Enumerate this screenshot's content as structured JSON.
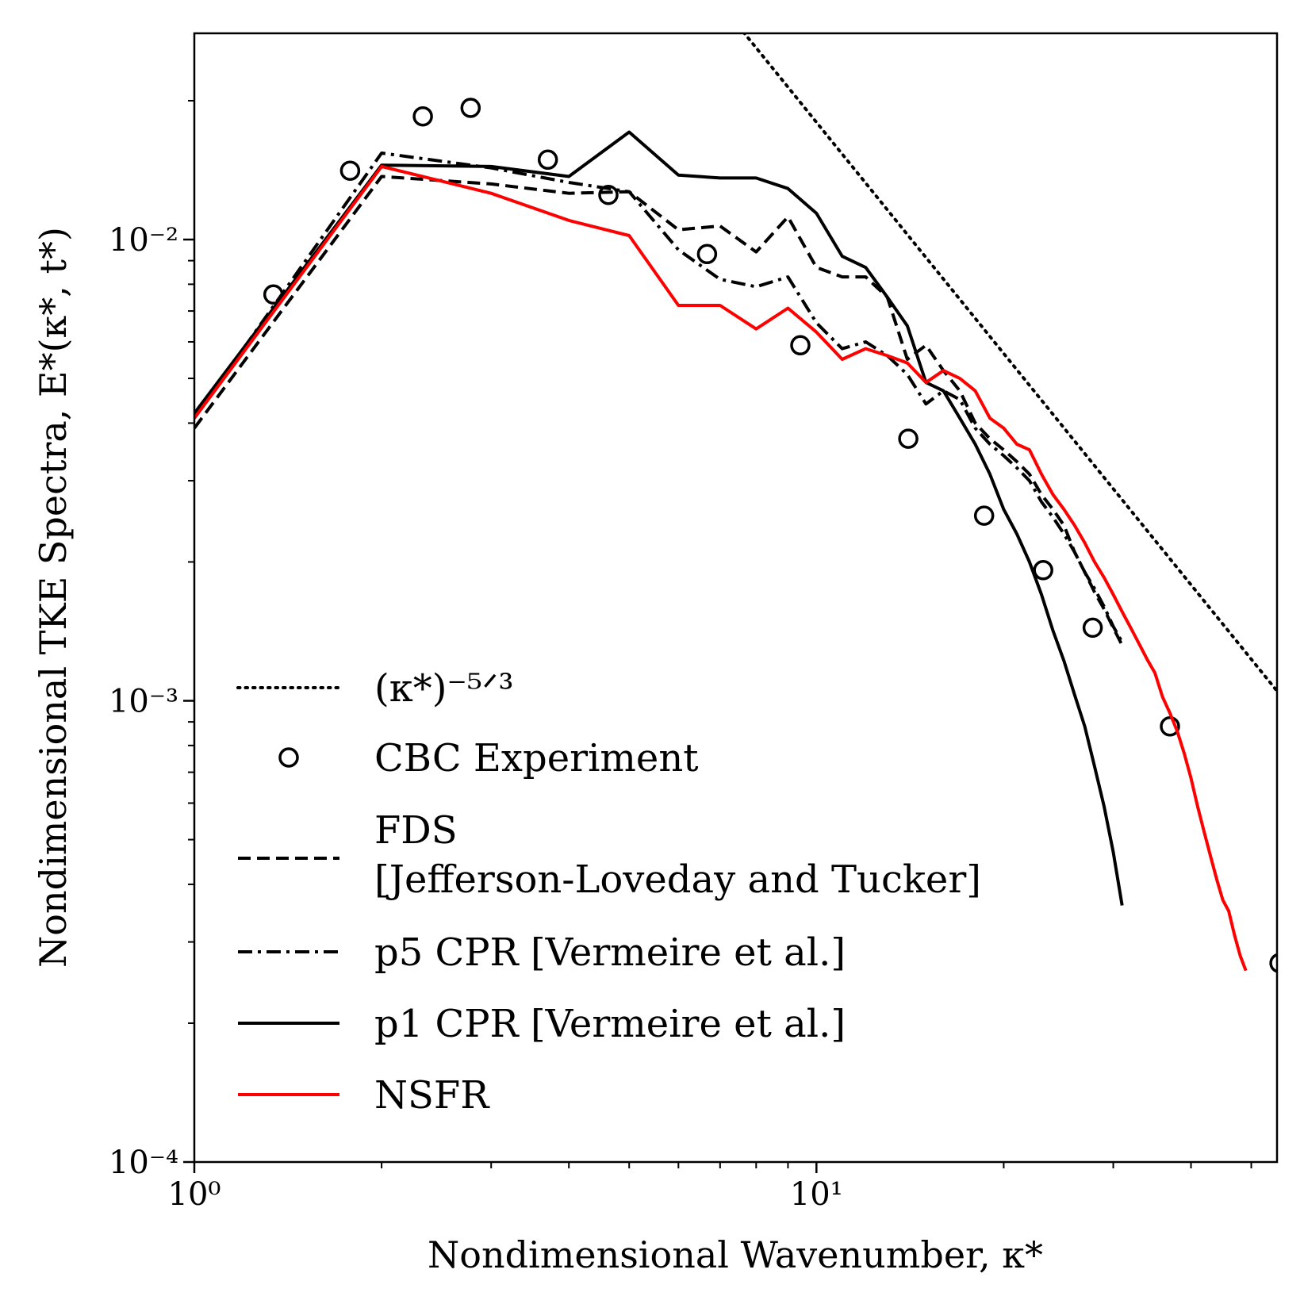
{
  "chart_data": {
    "type": "line",
    "xscale": "log",
    "yscale": "log",
    "xlim": [
      1,
      55
    ],
    "ylim": [
      0.0001,
      0.028
    ],
    "xlabel": "Nondimensional Wavenumber, κ*",
    "ylabel": "Nondimensional TKE Spectra, E*(κ*, t*)",
    "x_tick_labels": [
      {
        "value": 1,
        "label": "10⁰"
      },
      {
        "value": 10,
        "label": "10¹"
      }
    ],
    "y_tick_labels": [
      {
        "value": 0.0001,
        "label": "10⁻⁴"
      },
      {
        "value": 0.001,
        "label": "10⁻³"
      },
      {
        "value": 0.01,
        "label": "10⁻²"
      }
    ],
    "legend_position": "lower-left",
    "series": [
      {
        "name": "(κ*)^−5/3",
        "legend_label": "(κ*)⁻⁵ᐟ³",
        "style": "dotted",
        "color": "#000000",
        "x": [
          7.5,
          55
        ],
        "y": [
          0.029,
          0.00105
        ]
      },
      {
        "name": "CBC Experiment",
        "legend_label": "CBC Experiment",
        "style": "markers",
        "color": "#000000",
        "x": [
          1.34,
          1.78,
          2.33,
          2.78,
          3.7,
          4.63,
          6.67,
          9.42,
          14.05,
          18.6,
          23.15,
          27.8,
          37.0,
          55.5
        ],
        "y": [
          0.0076,
          0.0141,
          0.0185,
          0.0193,
          0.0149,
          0.0125,
          0.0093,
          0.0059,
          0.0037,
          0.00252,
          0.00192,
          0.00144,
          0.00088,
          0.00027
        ]
      },
      {
        "name": "FDS [Jefferson-Loveday and Tucker]",
        "legend_label_line1": "FDS",
        "legend_label_line2": "[Jefferson-Loveday and Tucker]",
        "style": "dashed",
        "color": "#000000",
        "x": [
          1,
          2,
          3,
          4,
          5,
          6,
          7,
          8,
          9,
          10,
          11,
          12,
          13,
          14,
          15,
          16,
          17,
          18,
          19,
          20,
          21,
          22,
          23,
          24,
          25,
          26,
          27,
          28,
          29,
          30,
          31
        ],
        "y": [
          0.0039,
          0.0137,
          0.0132,
          0.0126,
          0.0127,
          0.0105,
          0.0107,
          0.0094,
          0.0112,
          0.0087,
          0.0083,
          0.0083,
          0.0075,
          0.0055,
          0.0059,
          0.0052,
          0.0047,
          0.004,
          0.0037,
          0.0035,
          0.0033,
          0.0031,
          0.0028,
          0.0026,
          0.0024,
          0.0021,
          0.0019,
          0.00172,
          0.00158,
          0.00144,
          0.00132
        ]
      },
      {
        "name": "p5 CPR [Vermeire et al.]",
        "legend_label": "p5 CPR [Vermeire et al.]",
        "style": "dashdot",
        "color": "#000000",
        "x": [
          1,
          2,
          3,
          4,
          5,
          6,
          7,
          8,
          9,
          10,
          11,
          12,
          13,
          14,
          15,
          16,
          17,
          18,
          19,
          20,
          21,
          22,
          23,
          24,
          25,
          26,
          27,
          28,
          29,
          30,
          31
        ],
        "y": [
          0.0041,
          0.0154,
          0.0143,
          0.0133,
          0.0127,
          0.0095,
          0.0082,
          0.0079,
          0.0083,
          0.0066,
          0.0058,
          0.006,
          0.0056,
          0.0051,
          0.0044,
          0.0047,
          0.0045,
          0.0039,
          0.0036,
          0.0034,
          0.0032,
          0.003,
          0.0027,
          0.0025,
          0.0023,
          0.0021,
          0.0019,
          0.00175,
          0.0016,
          0.00145,
          0.00134
        ]
      },
      {
        "name": "p1 CPR [Vermeire et al.]",
        "legend_label": "p1 CPR [Vermeire et al.]",
        "style": "solid",
        "color": "#000000",
        "x": [
          1,
          2,
          3,
          4,
          5,
          6,
          7,
          8,
          9,
          10,
          11,
          12,
          13,
          14,
          15,
          16,
          17,
          18,
          19,
          20,
          21,
          22,
          23,
          24,
          25,
          26,
          27,
          28,
          29,
          30,
          31
        ],
        "y": [
          0.0042,
          0.0145,
          0.0144,
          0.0137,
          0.0171,
          0.0138,
          0.0136,
          0.0136,
          0.0129,
          0.0114,
          0.0092,
          0.0087,
          0.0075,
          0.0065,
          0.0049,
          0.0047,
          0.0041,
          0.0036,
          0.0031,
          0.0026,
          0.0023,
          0.002,
          0.0017,
          0.00142,
          0.00122,
          0.00103,
          0.00088,
          0.00072,
          0.00059,
          0.00047,
          0.00036
        ]
      },
      {
        "name": "NSFR",
        "legend_label": "NSFR",
        "style": "solid",
        "color": "#ff0000",
        "x": [
          1,
          2,
          3,
          4,
          5,
          6,
          7,
          8,
          9,
          10,
          11,
          12,
          13,
          14,
          15,
          16,
          17,
          18,
          19,
          20,
          21,
          22,
          23,
          24,
          25,
          26,
          27,
          28,
          29,
          30,
          31,
          32,
          33,
          34,
          35,
          36,
          37,
          38,
          39,
          40,
          41,
          42,
          43,
          44,
          45,
          46,
          47,
          48,
          49
        ],
        "y": [
          0.0041,
          0.0144,
          0.0126,
          0.011,
          0.0102,
          0.0072,
          0.0072,
          0.0064,
          0.0071,
          0.0063,
          0.0055,
          0.0058,
          0.0056,
          0.0054,
          0.0049,
          0.0052,
          0.005,
          0.0047,
          0.0041,
          0.0039,
          0.0036,
          0.0035,
          0.0031,
          0.0028,
          0.0026,
          0.0024,
          0.0022,
          0.002,
          0.00185,
          0.0017,
          0.00156,
          0.00144,
          0.00133,
          0.00123,
          0.00115,
          0.00102,
          0.00094,
          0.00086,
          0.00077,
          0.00068,
          0.00059,
          0.00052,
          0.00046,
          0.00041,
          0.00037,
          0.00035,
          0.00031,
          0.00028,
          0.00026
        ]
      }
    ]
  }
}
